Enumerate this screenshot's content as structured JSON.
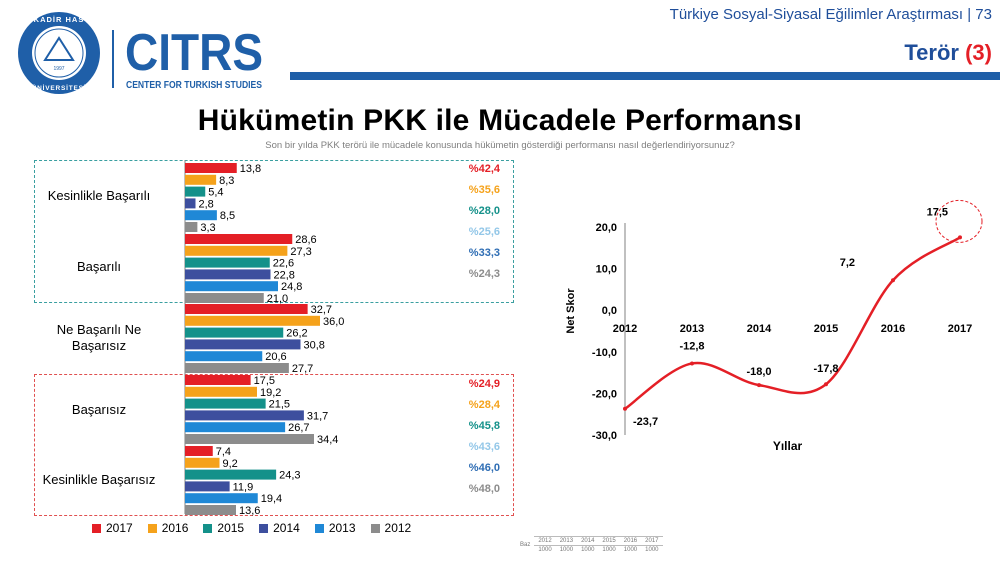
{
  "header": {
    "survey_title": "Türkiye Sosyal-Siyasal Eğilimler Araştırması | 73",
    "section_title": "Terör",
    "section_number": "(3)",
    "bar_color": "#1f5fa8"
  },
  "logos": {
    "seal_top_text": "KADİR HAS",
    "seal_bottom_text": "ÜNİVERSİTESİ",
    "seal_year": "1997",
    "citrs_text": "CITRS",
    "citrs_subtext": "CENTER FOR TURKISH STUDIES"
  },
  "title": "Hükümetin PKK ile Mücadele Performansı",
  "subtitle": "Son bir yılda PKK terörü ile mücadele konusunda hükümetin gösterdiği performansı nasıl değerlendiriyorsunuz?",
  "pct_labels": [
    {
      "text": "%42,4",
      "color": "#e41f26"
    },
    {
      "text": "%35,6",
      "color": "#f5a21b"
    },
    {
      "text": "%28,0",
      "color": "#14918a"
    },
    {
      "text": "%25,6",
      "color": "#93c7e8"
    },
    {
      "text": "%33,3",
      "color": "#2e6db4"
    },
    {
      "text": "%24,3",
      "color": "#8c8c8c"
    },
    {
      "text": "%24,9",
      "color": "#e41f26"
    },
    {
      "text": "%28,4",
      "color": "#f5a21b"
    },
    {
      "text": "%45,8",
      "color": "#14918a"
    },
    {
      "text": "%43,6",
      "color": "#93c7e8"
    },
    {
      "text": "%46,0",
      "color": "#2e6db4"
    },
    {
      "text": "%48,0",
      "color": "#8c8c8c"
    }
  ],
  "sample_table": {
    "row_label": "Baz",
    "years": [
      "2012",
      "2013",
      "2014",
      "2015",
      "2016",
      "2017"
    ],
    "values": [
      "1000",
      "1000",
      "1000",
      "1000",
      "1000",
      "1000"
    ]
  },
  "chart_data": [
    {
      "type": "bar",
      "orientation": "horizontal",
      "categories": [
        "Kesinlikle Başarılı",
        "Başarılı",
        "Ne Başarılı Ne Başarısız",
        "Başarısız",
        "Kesinlikle Başarısız"
      ],
      "series": [
        {
          "name": "2017",
          "color": "#e41f26",
          "values": [
            13.8,
            28.6,
            32.7,
            17.5,
            7.4
          ],
          "labels": [
            "13,8",
            "28,6",
            "32,7",
            "17,5",
            "7,4"
          ]
        },
        {
          "name": "2016",
          "color": "#f5a21b",
          "values": [
            8.3,
            27.3,
            36.0,
            19.2,
            9.2
          ],
          "labels": [
            "8,3",
            "27,3",
            "36,0",
            "19,2",
            "9,2"
          ]
        },
        {
          "name": "2015",
          "color": "#14918a",
          "values": [
            5.4,
            22.6,
            26.2,
            21.5,
            24.3
          ],
          "labels": [
            "5,4",
            "22,6",
            "26,2",
            "21,5",
            "24,3"
          ]
        },
        {
          "name": "2014",
          "color": "#3d4f9e",
          "values": [
            2.8,
            22.8,
            30.8,
            31.7,
            11.9
          ],
          "labels": [
            "2,8",
            "22,8",
            "30,8",
            "31,7",
            "11,9"
          ]
        },
        {
          "name": "2013",
          "color": "#1f88d6",
          "values": [
            8.5,
            24.8,
            20.6,
            26.7,
            19.4
          ],
          "labels": [
            "8,5",
            "24,8",
            "20,6",
            "26,7",
            "19,4"
          ]
        },
        {
          "name": "2012",
          "color": "#8c8c8c",
          "values": [
            3.3,
            21.0,
            27.7,
            34.4,
            13.6
          ],
          "labels": [
            "3,3",
            "21,0",
            "27,7",
            "34,4",
            "13,6"
          ]
        }
      ],
      "legend_position": "bottom"
    },
    {
      "type": "line",
      "x": [
        "2012",
        "2013",
        "2014",
        "2015",
        "2016",
        "2017"
      ],
      "series": [
        {
          "values": [
            -23.7,
            -12.8,
            -18.0,
            -17.8,
            7.2,
            17.5
          ],
          "labels": [
            "-23,7",
            "-12,8",
            "-18,0",
            "-17,8",
            "7,2",
            "17,5"
          ],
          "color": "#e41f26"
        }
      ],
      "xlabel": "Yıllar",
      "ylabel": "Net Skor",
      "ylim": [
        -30,
        20
      ],
      "yticks": [
        "20,0",
        "10,0",
        "0,0",
        "-10,0",
        "-20,0",
        "-30,0"
      ],
      "highlight_last_point": true,
      "grid": false
    }
  ]
}
